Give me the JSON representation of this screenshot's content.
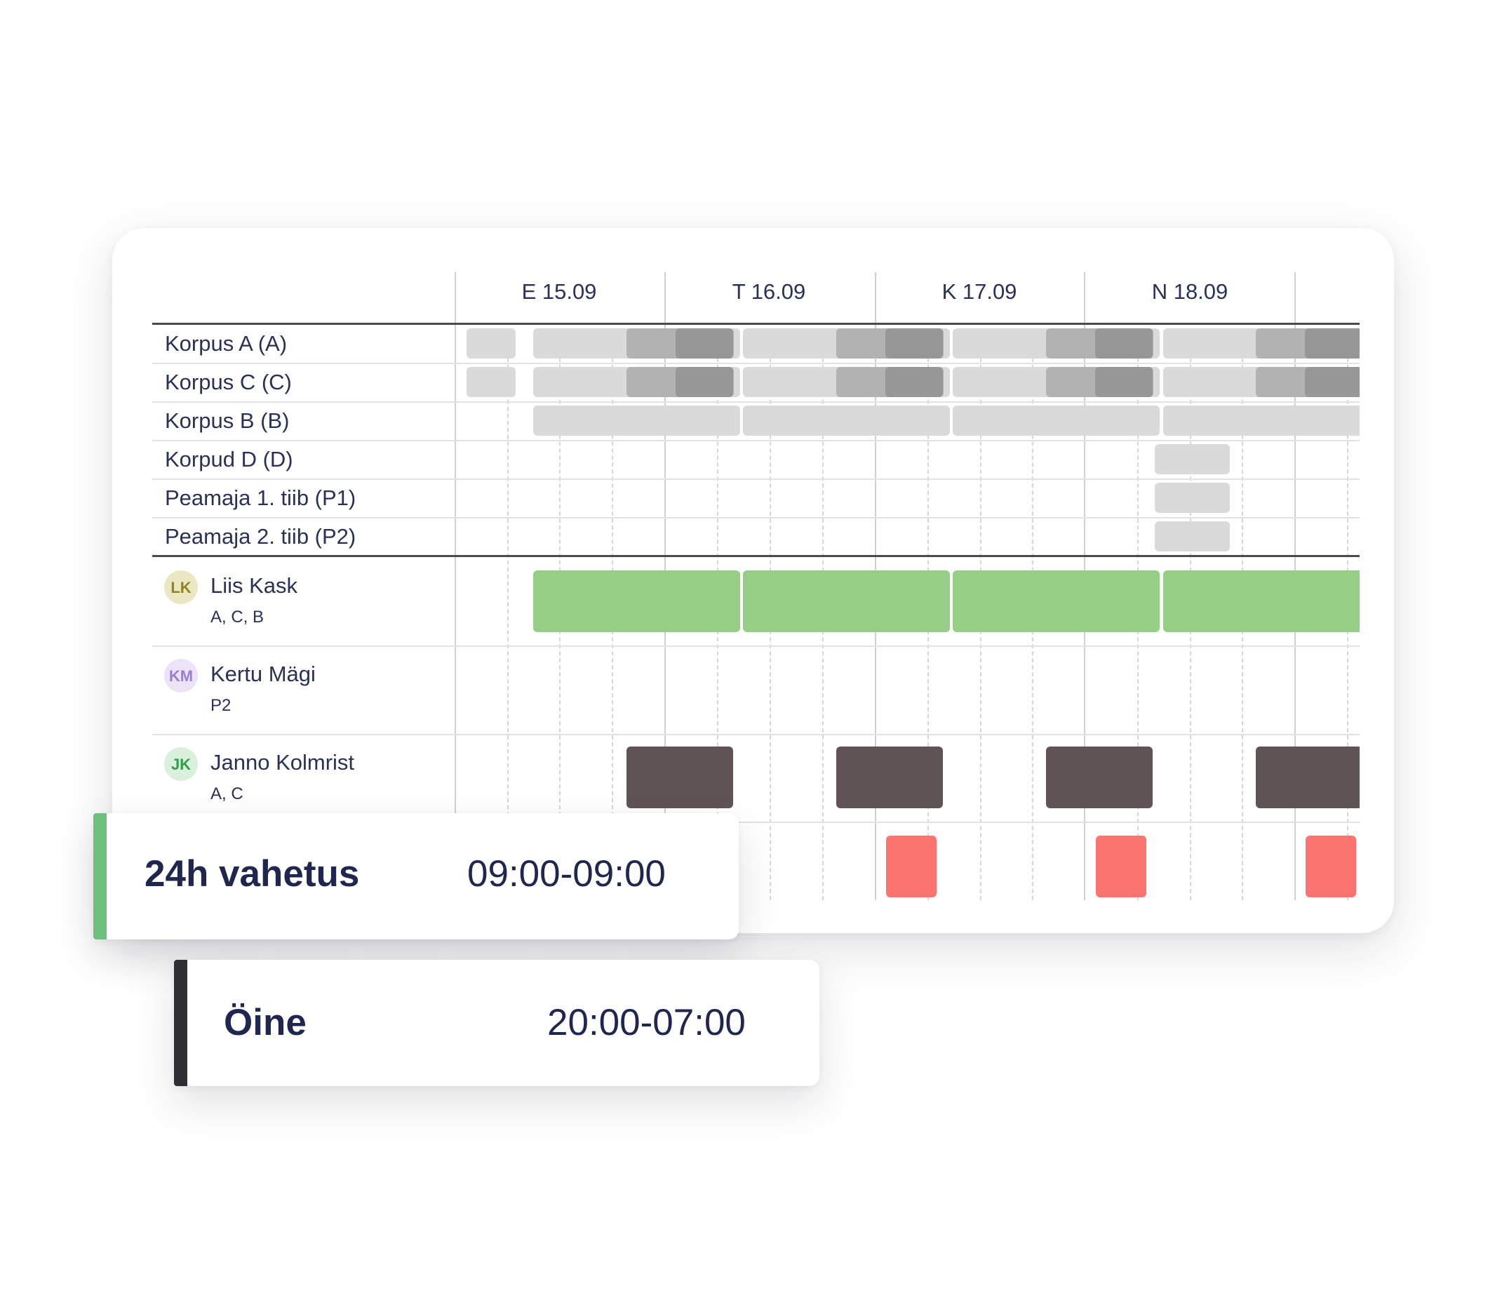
{
  "days": [
    "E 15.09",
    "T 16.09",
    "K 17.09",
    "N 18.09"
  ],
  "locations": [
    "Korpus A (A)",
    "Korpus C (C)",
    "Korpus B (B)",
    "Korpud D (D)",
    "Peamaja 1. tiib (P1)",
    "Peamaja 2. tiib (P2)"
  ],
  "employees": [
    {
      "initials": "LK",
      "name": "Liis Kask",
      "locations": "A, C, B",
      "avatar_bg": "#ece7c3",
      "avatar_fg": "#8f8420"
    },
    {
      "initials": "KM",
      "name": "Kertu Mägi",
      "locations": "P2",
      "avatar_bg": "#ece3f8",
      "avatar_fg": "#9a7fd0"
    },
    {
      "initials": "JK",
      "name": "Janno Kolmrist",
      "locations": "A, C",
      "avatar_bg": "#d8f0dc",
      "avatar_fg": "#2f9e48"
    }
  ],
  "shift_types": [
    {
      "name": "24h vahetus",
      "time": "09:00-09:00",
      "color": "#6cc17c"
    },
    {
      "name": "Öine",
      "time": "20:00-07:00",
      "color": "#2f2f33"
    }
  ],
  "colors": {
    "coverage_light": "#dadada",
    "coverage_mid": "#b2b2b2",
    "coverage_dark": "#979797",
    "shift_24h": "#96ce86",
    "shift_night": "#605356",
    "shift_conflict": "#fb7470"
  }
}
